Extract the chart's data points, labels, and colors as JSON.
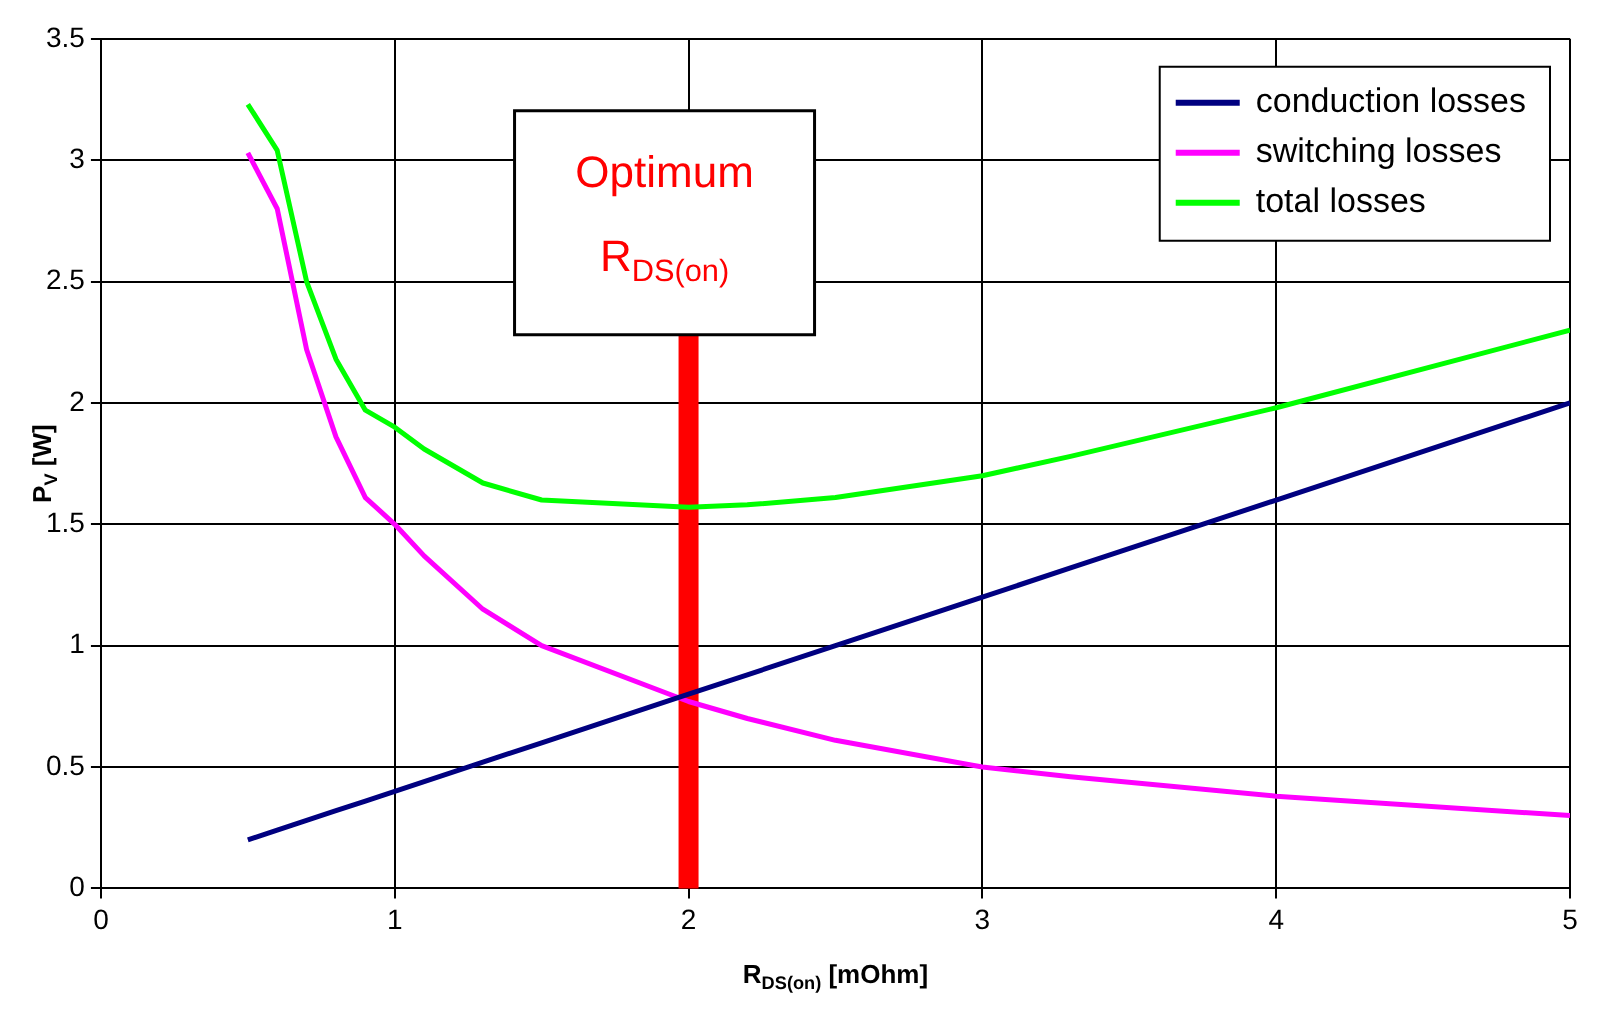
{
  "chart_data": {
    "type": "line",
    "xlabel": "R$_{DS(on)}$ [mOhm]",
    "ylabel": "P$_{V}$ [W]",
    "series": [
      {
        "name": "conduction losses",
        "color": "#000080",
        "x": [
          0.5,
          0.6,
          0.7,
          0.8,
          0.9,
          1,
          1.1,
          1.3,
          1.5,
          2,
          2.2,
          2.5,
          3,
          3.3,
          4,
          5
        ],
        "values": [
          0.2,
          0.24,
          0.28,
          0.32,
          0.36,
          0.4,
          0.44,
          0.52,
          0.6,
          0.8,
          0.88,
          1,
          1.2,
          1.32,
          1.6,
          2
        ]
      },
      {
        "name": "switching losses",
        "color": "#ff00ff",
        "x": [
          0.5,
          0.6,
          0.7,
          0.8,
          0.9,
          1,
          1.1,
          1.3,
          1.5,
          2,
          2.2,
          2.5,
          3,
          3.3,
          4,
          5
        ],
        "values": [
          3.03,
          2.8,
          2.22,
          1.86,
          1.61,
          1.5,
          1.37,
          1.15,
          1,
          0.77,
          0.7,
          0.61,
          0.5,
          0.46,
          0.38,
          0.3
        ]
      },
      {
        "name": "total losses",
        "color": "#00ff00",
        "x": [
          0.5,
          0.6,
          0.7,
          0.8,
          0.9,
          1,
          1.1,
          1.3,
          1.5,
          2,
          2.2,
          2.5,
          3,
          3.3,
          4,
          5
        ],
        "values": [
          3.23,
          3.04,
          2.5,
          2.18,
          1.97,
          1.9,
          1.81,
          1.67,
          1.6,
          1.57,
          1.58,
          1.61,
          1.7,
          1.78,
          1.98,
          2.3
        ]
      }
    ],
    "xlim": [
      0,
      5
    ],
    "xticks": [
      0,
      1,
      2,
      3,
      4,
      5
    ],
    "ylim": [
      0,
      3.5
    ],
    "yticks": [
      0,
      0.5,
      1,
      1.5,
      2,
      2.5,
      3,
      3.5
    ],
    "grid": true,
    "legend": "top right",
    "marker": "none",
    "line_style": "solid",
    "ref_lines": [
      {
        "axis": "x",
        "value": 2,
        "label": "Optimum R$_{DS(on)}$",
        "color": "#ff0000"
      }
    ]
  }
}
